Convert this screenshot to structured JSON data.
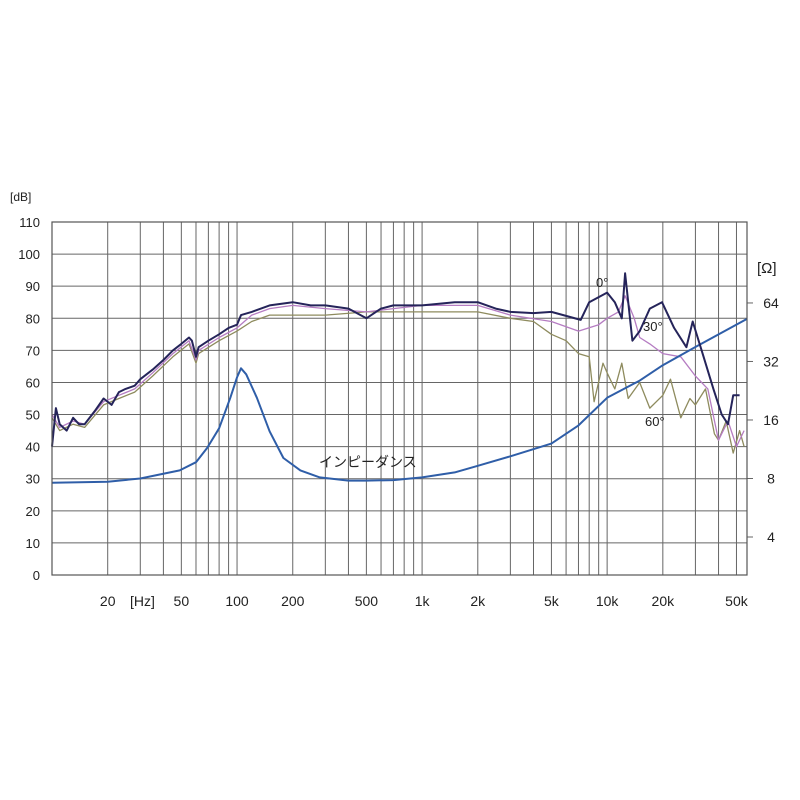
{
  "chart_data": {
    "type": "line",
    "title": "",
    "xlabel": "[Hz]",
    "ylabel": "[dB]",
    "y2label": "[Ω]",
    "x_scale": "log",
    "xlim": [
      10,
      57000
    ],
    "ylim": [
      0,
      110
    ],
    "y2_scale": "log2",
    "y2lim": [
      2.55,
      167
    ],
    "grid": true,
    "x_ticks": [
      {
        "value": 20,
        "label": "20"
      },
      {
        "value": 50,
        "label": "50"
      },
      {
        "value": 100,
        "label": "100"
      },
      {
        "value": 200,
        "label": "200"
      },
      {
        "value": 500,
        "label": "500"
      },
      {
        "value": 1000,
        "label": "1k"
      },
      {
        "value": 2000,
        "label": "2k"
      },
      {
        "value": 5000,
        "label": "5k"
      },
      {
        "value": 10000,
        "label": "10k"
      },
      {
        "value": 20000,
        "label": "20k"
      },
      {
        "value": 50000,
        "label": "50k"
      }
    ],
    "y_ticks": [
      "0",
      "10",
      "20",
      "30",
      "40",
      "50",
      "60",
      "70",
      "80",
      "90",
      "100",
      "110"
    ],
    "y2_ticks": [
      "4",
      "8",
      "16",
      "32",
      "64"
    ],
    "series": [
      {
        "name": "0°",
        "axis": "left",
        "color": "#25245a",
        "x": [
          10,
          10.5,
          11,
          12,
          13,
          14,
          15,
          17,
          19,
          21,
          23,
          25,
          28,
          30,
          35,
          40,
          45,
          50,
          55,
          57,
          60,
          62,
          70,
          80,
          90,
          100,
          105,
          120,
          150,
          200,
          250,
          300,
          400,
          500,
          600,
          700,
          1000,
          1500,
          2000,
          2500,
          3000,
          4000,
          5000,
          7200,
          8000,
          10000,
          11000,
          12000,
          12500,
          13700,
          15000,
          17000,
          19800,
          23000,
          26800,
          29000,
          32800,
          37500,
          41600,
          45000,
          48000,
          52000
        ],
        "y": [
          40,
          52,
          47,
          45,
          49,
          47,
          47,
          51,
          55,
          53,
          57,
          58,
          59,
          61,
          64,
          67,
          70,
          72,
          74,
          73,
          68,
          71,
          73,
          75,
          77,
          78,
          81,
          82,
          84,
          85,
          84,
          84,
          83,
          80,
          83,
          84,
          84,
          85,
          85,
          83,
          82,
          81.6,
          82,
          79.5,
          85,
          88,
          85,
          80,
          94,
          73,
          76,
          83,
          85,
          77,
          71,
          79,
          69,
          58,
          50,
          47,
          56,
          56
        ]
      },
      {
        "name": "30°",
        "axis": "left",
        "color": "#b57cc2",
        "x": [
          10,
          11,
          13,
          15,
          19,
          23,
          28,
          35,
          45,
          55,
          60,
          62,
          80,
          100,
          120,
          150,
          200,
          300,
          500,
          700,
          1000,
          2000,
          3000,
          5000,
          7000,
          9000,
          10000,
          11500,
          12500,
          14000,
          15000,
          17000,
          20000,
          25000,
          30000,
          35000,
          40000,
          45000,
          50000,
          55000
        ],
        "y": [
          50,
          46,
          48,
          47,
          54,
          56,
          58,
          63,
          69,
          73,
          67,
          70,
          74,
          77,
          81,
          83,
          84,
          83,
          82,
          83,
          84,
          84,
          81,
          79,
          76,
          78,
          80,
          82,
          87,
          80,
          74,
          72,
          69,
          68,
          62,
          58,
          42,
          48,
          40,
          45
        ]
      },
      {
        "name": "60°",
        "axis": "left",
        "color": "#8e8b5e",
        "x": [
          10,
          11,
          13,
          15,
          19,
          23,
          28,
          35,
          45,
          55,
          60,
          62,
          80,
          100,
          120,
          150,
          200,
          300,
          500,
          700,
          1000,
          2000,
          3000,
          4000,
          5000,
          6000,
          7000,
          8000,
          8500,
          9500,
          10000,
          11000,
          12000,
          13000,
          15000,
          17000,
          20000,
          22000,
          25000,
          28000,
          30000,
          34000,
          38000,
          40000,
          44000,
          48000,
          52000,
          55000
        ],
        "y": [
          49,
          45,
          47,
          46,
          53,
          55,
          57,
          62,
          68,
          72,
          66,
          69,
          73,
          76,
          79,
          81,
          81,
          81,
          82,
          82,
          82,
          82,
          80,
          79,
          75,
          73,
          69,
          68,
          54,
          66,
          63,
          58,
          66,
          55,
          60,
          52,
          56,
          61,
          49,
          55,
          53,
          58,
          44,
          42,
          48,
          38,
          45,
          40
        ]
      },
      {
        "name": "インピーダンス",
        "axis": "right",
        "color": "#2f5ea8",
        "x": [
          10,
          20,
          30,
          49,
          60,
          69,
          80,
          92,
          100,
          105,
          112,
          128,
          150,
          178,
          220,
          280,
          400,
          500,
          700,
          1000,
          1500,
          2000,
          3000,
          5000,
          7000,
          10000,
          15000,
          20000,
          30000,
          57000
        ],
        "y": [
          7.6,
          7.7,
          8.0,
          8.8,
          9.7,
          11.5,
          14.5,
          20.8,
          26.5,
          29.5,
          27.5,
          20.8,
          14,
          10.2,
          8.8,
          8.1,
          7.8,
          7.8,
          7.85,
          8.1,
          8.6,
          9.3,
          10.4,
          12.1,
          15,
          20.8,
          25.5,
          30.6,
          38,
          53
        ]
      }
    ],
    "annotations": [
      "0°",
      "30°",
      "60°",
      "インピーダンス"
    ]
  }
}
